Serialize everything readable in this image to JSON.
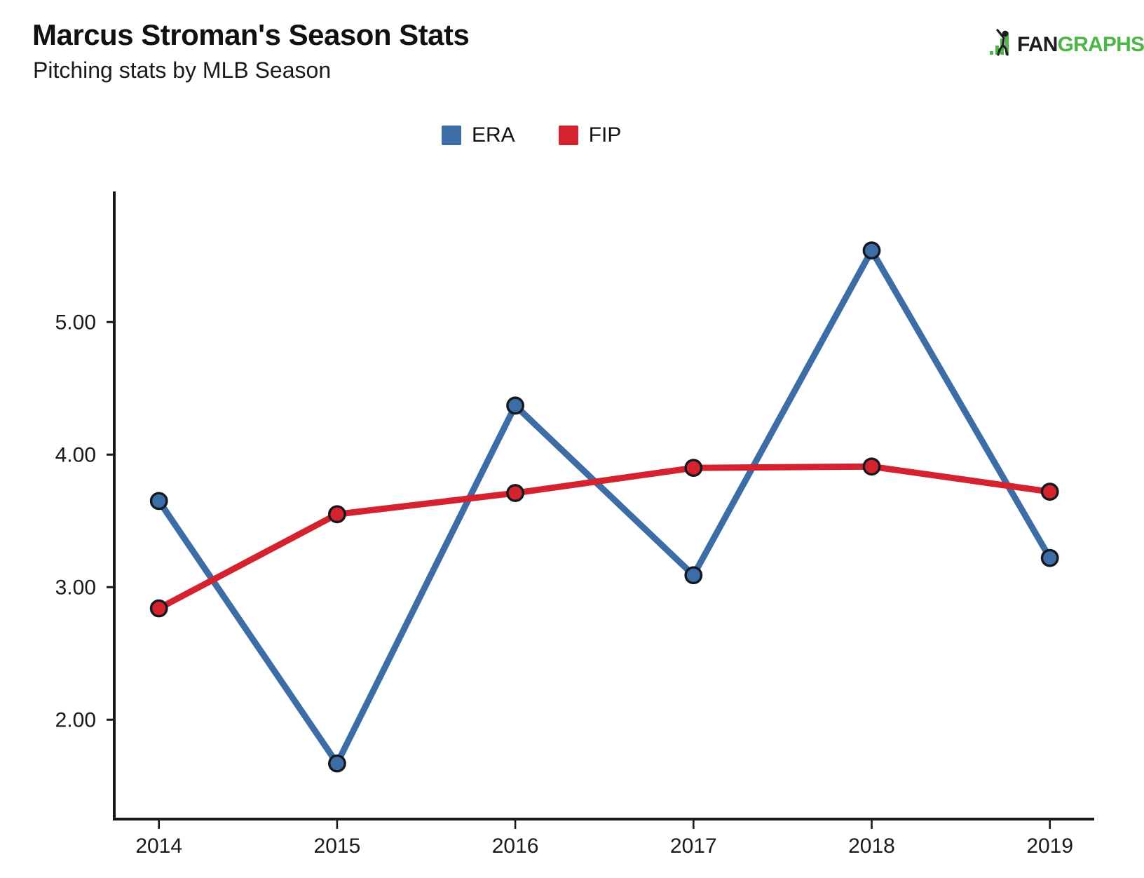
{
  "header": {
    "title": "Marcus Stroman's Season Stats",
    "subtitle": "Pitching stats by MLB Season"
  },
  "logo": {
    "text_black": "FAN",
    "text_green": "GRAPHS",
    "green_color": "#4cb648",
    "black_color": "#1d1d1b"
  },
  "legend": {
    "items": [
      {
        "label": "ERA",
        "color": "#3d6da6"
      },
      {
        "label": "FIP",
        "color": "#d4232e"
      }
    ]
  },
  "chart_data": {
    "type": "line",
    "title": "Marcus Stroman's Season Stats",
    "subtitle": "Pitching stats by MLB Season",
    "categories": [
      "2014",
      "2015",
      "2016",
      "2017",
      "2018",
      "2019"
    ],
    "series": [
      {
        "name": "ERA",
        "color": "#3d6da6",
        "values": [
          3.65,
          1.67,
          4.37,
          3.09,
          5.54,
          3.22
        ]
      },
      {
        "name": "FIP",
        "color": "#d4232e",
        "values": [
          2.84,
          3.55,
          3.71,
          3.9,
          3.91,
          3.72
        ]
      }
    ],
    "xlabel": "",
    "ylabel": "",
    "y_ticks": [
      {
        "value": 2,
        "label": "2.00"
      },
      {
        "value": 3,
        "label": "3.00"
      },
      {
        "value": 4,
        "label": "4.00"
      },
      {
        "value": 5,
        "label": "5.00"
      }
    ],
    "ylim": [
      1.25,
      5.99
    ],
    "grid": false,
    "legend_position": "top-center",
    "marker": "circle",
    "marker_outline": "#15181e",
    "axis_color": "#1a1a1a"
  }
}
